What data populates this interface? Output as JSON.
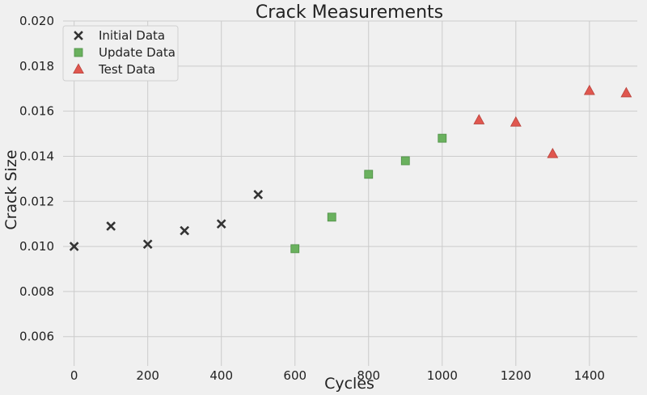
{
  "chart_data": {
    "type": "scatter",
    "title": "Crack Measurements",
    "xlabel": "Cycles",
    "ylabel": "Crack Size",
    "xlim": [
      -30,
      1530
    ],
    "ylim": [
      0.0047,
      0.02
    ],
    "xticks": [
      0,
      200,
      400,
      600,
      800,
      1000,
      1200,
      1400
    ],
    "xtick_labels": [
      "0",
      "200",
      "400",
      "600",
      "800",
      "1000",
      "1200",
      "1400"
    ],
    "yticks": [
      0.006,
      0.008,
      0.01,
      0.012,
      0.014,
      0.016,
      0.018,
      0.02
    ],
    "ytick_labels": [
      "0.006",
      "0.008",
      "0.010",
      "0.012",
      "0.014",
      "0.016",
      "0.018",
      "0.020"
    ],
    "grid": true,
    "legend_position": "top-left",
    "series": [
      {
        "name": "Initial Data",
        "marker": "x",
        "color": "#333333",
        "x": [
          0,
          100,
          200,
          300,
          400,
          500
        ],
        "y": [
          0.01,
          0.0109,
          0.0101,
          0.0107,
          0.011,
          0.0123
        ]
      },
      {
        "name": "Update Data",
        "marker": "square",
        "color": "#6ab15e",
        "x": [
          600,
          700,
          800,
          900,
          1000
        ],
        "y": [
          0.0099,
          0.0113,
          0.0132,
          0.0138,
          0.0148
        ]
      },
      {
        "name": "Test Data",
        "marker": "triangle",
        "color": "#e0574f",
        "x": [
          1100,
          1200,
          1300,
          1400,
          1500
        ],
        "y": [
          0.0156,
          0.0155,
          0.0141,
          0.0169,
          0.0168
        ]
      }
    ]
  }
}
